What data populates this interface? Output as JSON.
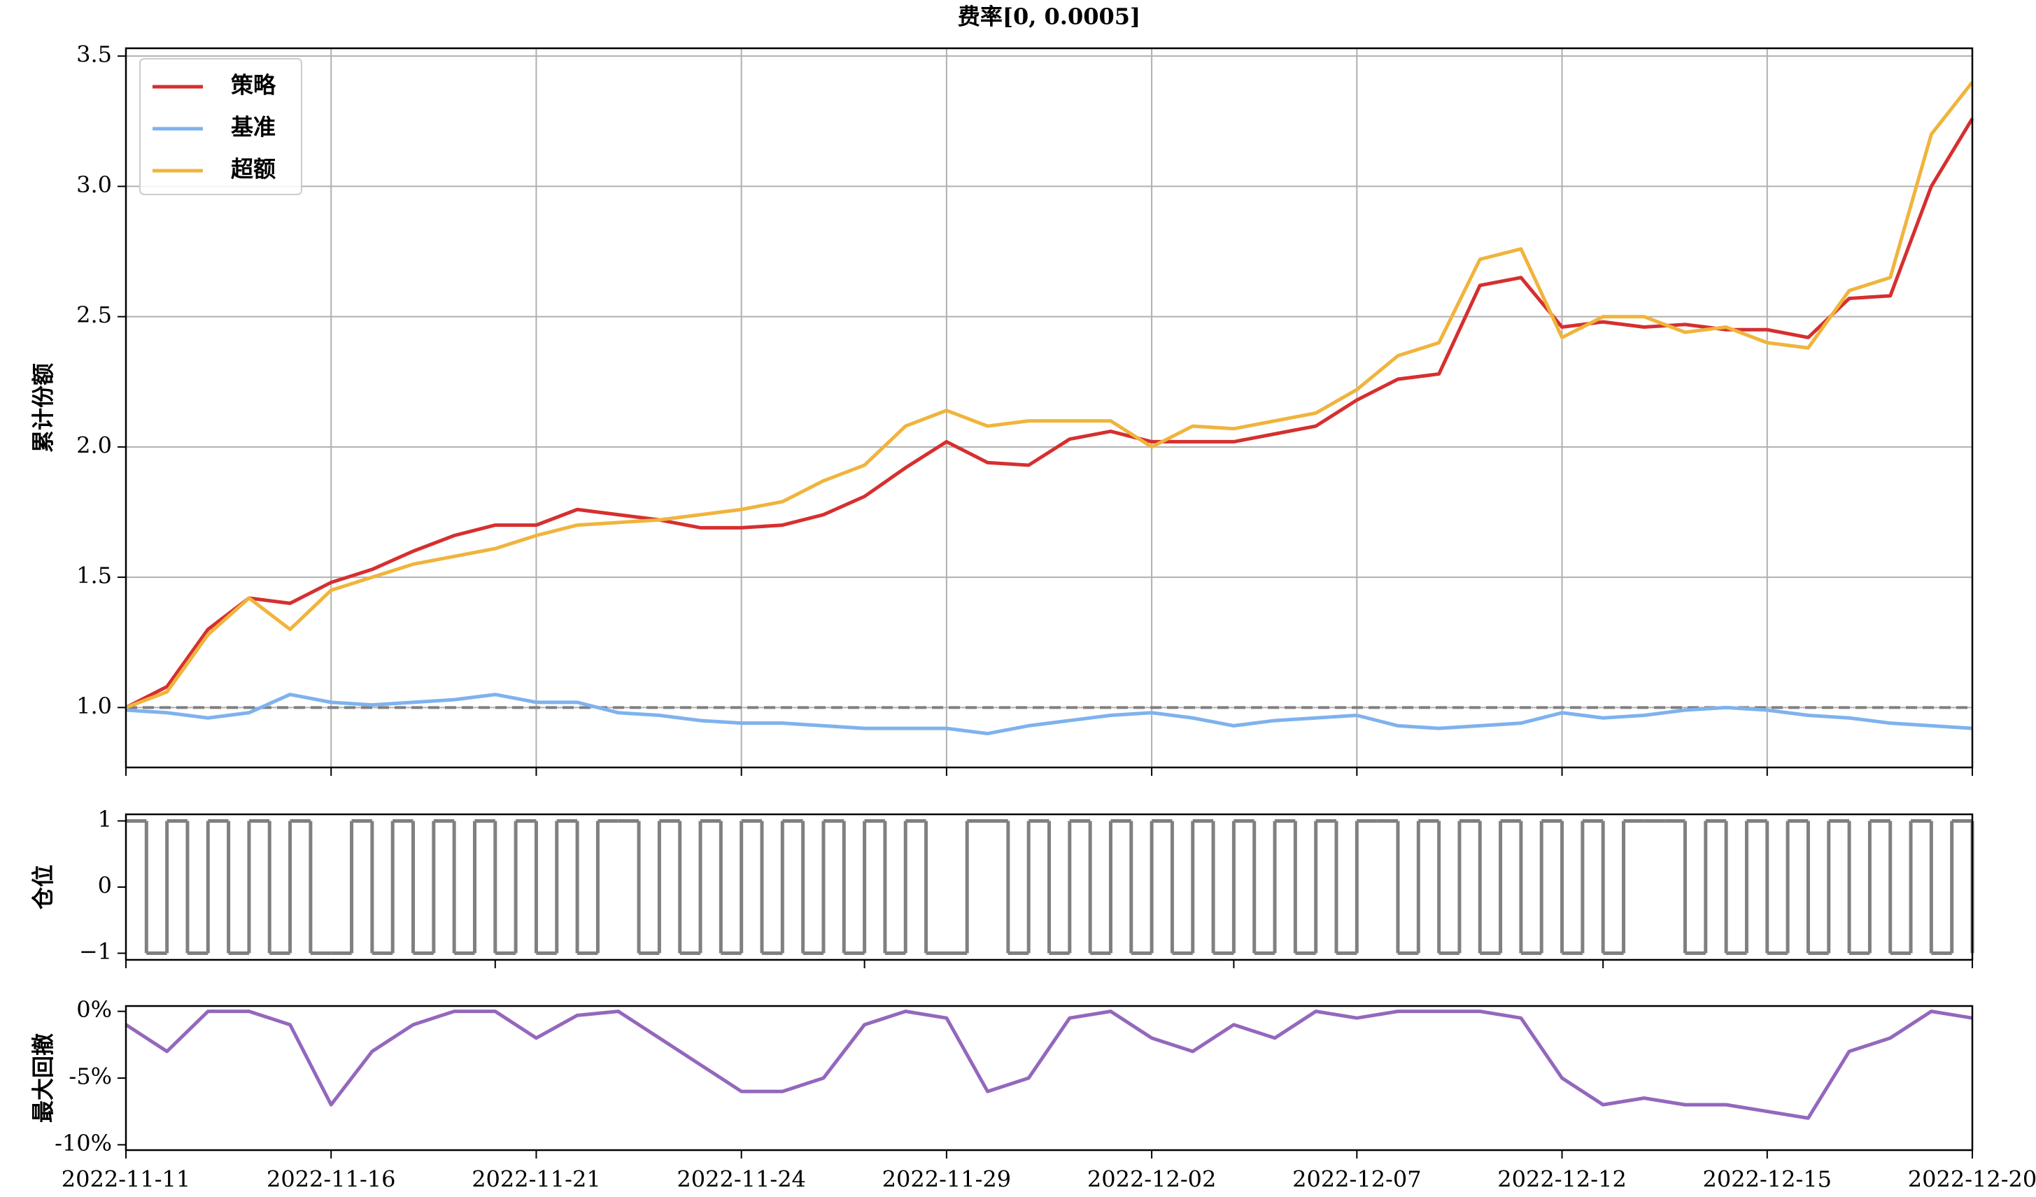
{
  "chart_data": [
    {
      "type": "line",
      "title": "费率[0, 0.0005]",
      "ylabel": "累计份额",
      "grid": true,
      "legend": "upper left",
      "reference_line": 1,
      "x": [
        0,
        2,
        4,
        6,
        8,
        10,
        12,
        14,
        16,
        18,
        20,
        22,
        24,
        26,
        28,
        30,
        32,
        34,
        36,
        38,
        40,
        42,
        44,
        46,
        48,
        50,
        52,
        54,
        56,
        58,
        60,
        62,
        64,
        66,
        68,
        70,
        72,
        74,
        76,
        78,
        80,
        82,
        84,
        86,
        88,
        90
      ],
      "xlim": [
        0,
        90
      ],
      "xticks": [
        0,
        10,
        20,
        30,
        40,
        50,
        60,
        70,
        80,
        90
      ],
      "ylim": [
        0.77,
        3.53
      ],
      "yticks": [
        {
          "value": 1,
          "label": "1.0"
        },
        1.5,
        {
          "value": 2,
          "label": "2.0"
        },
        2.5,
        {
          "value": 3,
          "label": "3.0"
        },
        3.5
      ],
      "series": [
        {
          "name": "策略",
          "color": "#d62f2f",
          "values": [
            1.0,
            1.08,
            1.3,
            1.42,
            1.4,
            1.48,
            1.53,
            1.6,
            1.66,
            1.7,
            1.7,
            1.76,
            1.74,
            1.72,
            1.69,
            1.69,
            1.7,
            1.74,
            1.81,
            1.92,
            2.02,
            1.94,
            1.93,
            2.03,
            2.06,
            2.02,
            2.02,
            2.02,
            2.05,
            2.08,
            2.18,
            2.26,
            2.28,
            2.62,
            2.65,
            2.46,
            2.48,
            2.46,
            2.47,
            2.45,
            2.45,
            2.42,
            2.57,
            2.58,
            3.0,
            3.26
          ]
        },
        {
          "name": "基准",
          "color": "#7eb2ee",
          "values": [
            0.99,
            0.98,
            0.96,
            0.98,
            1.05,
            1.02,
            1.01,
            1.02,
            1.03,
            1.05,
            1.02,
            1.02,
            0.98,
            0.97,
            0.95,
            0.94,
            0.94,
            0.93,
            0.92,
            0.92,
            0.92,
            0.9,
            0.93,
            0.95,
            0.97,
            0.98,
            0.96,
            0.93,
            0.95,
            0.96,
            0.97,
            0.93,
            0.92,
            0.93,
            0.94,
            0.98,
            0.96,
            0.97,
            0.99,
            1.0,
            0.99,
            0.97,
            0.96,
            0.94,
            0.93,
            0.92
          ]
        },
        {
          "name": "超额",
          "color": "#f0b43c",
          "values": [
            1.0,
            1.06,
            1.28,
            1.42,
            1.3,
            1.45,
            1.5,
            1.55,
            1.58,
            1.61,
            1.66,
            1.7,
            1.71,
            1.72,
            1.74,
            1.76,
            1.79,
            1.87,
            1.93,
            2.08,
            2.14,
            2.08,
            2.1,
            2.1,
            2.1,
            2.0,
            2.08,
            2.07,
            2.1,
            2.13,
            2.22,
            2.35,
            2.4,
            2.72,
            2.76,
            2.42,
            2.5,
            2.5,
            2.44,
            2.46,
            2.4,
            2.38,
            2.6,
            2.65,
            3.2,
            3.4
          ]
        }
      ]
    },
    {
      "type": "step",
      "ylabel": "仓位",
      "x": [
        0,
        1,
        2,
        3,
        4,
        5,
        6,
        7,
        8,
        9,
        10,
        11,
        12,
        13,
        14,
        15,
        16,
        17,
        18,
        19,
        20,
        21,
        22,
        23,
        24,
        25,
        26,
        27,
        28,
        29,
        30,
        31,
        32,
        33,
        34,
        35,
        36,
        37,
        38,
        39,
        40,
        41,
        42,
        43,
        44,
        45,
        46,
        47,
        48,
        49,
        50,
        51,
        52,
        53,
        54,
        55,
        56,
        57,
        58,
        59,
        60,
        61,
        62,
        63,
        64,
        65,
        66,
        67,
        68,
        69,
        70,
        71,
        72,
        73,
        74,
        75,
        76,
        77,
        78,
        79,
        80,
        81,
        82,
        83,
        84,
        85,
        86,
        87,
        88,
        89,
        90
      ],
      "xlim": [
        0,
        90
      ],
      "xticks": [
        0,
        18,
        36,
        54,
        72,
        90
      ],
      "ylim": [
        -1.1,
        1.1
      ],
      "yticks": [
        {
          "value": -1,
          "label": "−1"
        },
        0,
        1
      ],
      "series": [
        {
          "color": "#808080",
          "values": [
            1,
            -1,
            1,
            -1,
            1,
            -1,
            1,
            -1,
            1,
            -1,
            -1,
            1,
            -1,
            1,
            -1,
            1,
            -1,
            1,
            -1,
            1,
            -1,
            1,
            -1,
            1,
            1,
            -1,
            1,
            -1,
            1,
            -1,
            1,
            -1,
            1,
            -1,
            1,
            -1,
            1,
            -1,
            1,
            -1,
            -1,
            1,
            1,
            -1,
            1,
            -1,
            1,
            -1,
            1,
            -1,
            1,
            -1,
            1,
            -1,
            1,
            -1,
            1,
            -1,
            1,
            -1,
            1,
            1,
            -1,
            1,
            -1,
            1,
            -1,
            1,
            -1,
            1,
            -1,
            1,
            -1,
            1,
            1,
            1,
            -1,
            1,
            -1,
            1,
            -1,
            1,
            -1,
            1,
            -1,
            1,
            -1,
            1,
            -1,
            1,
            -1
          ]
        }
      ]
    },
    {
      "type": "line",
      "ylabel": "最大回撤",
      "x": [
        0,
        2,
        4,
        6,
        8,
        10,
        12,
        14,
        16,
        18,
        20,
        22,
        24,
        26,
        28,
        30,
        32,
        34,
        36,
        38,
        40,
        42,
        44,
        46,
        48,
        50,
        52,
        54,
        56,
        58,
        60,
        62,
        64,
        66,
        68,
        70,
        72,
        74,
        76,
        78,
        80,
        82,
        84,
        86,
        88,
        90
      ],
      "xlim": [
        0,
        90
      ],
      "xticks": [
        {
          "value": 0,
          "label": "2022-11-11"
        },
        {
          "value": 10,
          "label": "2022-11-16"
        },
        {
          "value": 20,
          "label": "2022-11-21"
        },
        {
          "value": 30,
          "label": "2022-11-24"
        },
        {
          "value": 40,
          "label": "2022-11-29"
        },
        {
          "value": 50,
          "label": "2022-12-02"
        },
        {
          "value": 60,
          "label": "2022-12-07"
        },
        {
          "value": 70,
          "label": "2022-12-12"
        },
        {
          "value": 80,
          "label": "2022-12-15"
        },
        {
          "value": 90,
          "label": "2022-12-20"
        }
      ],
      "ylim": [
        -10.4,
        0.4
      ],
      "yticks": [
        {
          "value": 0,
          "label": "0%"
        },
        {
          "value": -5,
          "label": "-5%"
        },
        {
          "value": -10,
          "label": "-10%"
        }
      ],
      "series": [
        {
          "color": "#9467bd",
          "values": [
            -1,
            -3,
            0,
            0,
            -1,
            -7,
            -3,
            -1,
            0,
            0,
            -2,
            -0.3,
            0,
            -2,
            -4,
            -6,
            -6,
            -5,
            -1,
            0,
            -0.5,
            -6,
            -5,
            -0.5,
            0,
            -2,
            -3,
            -1,
            -2,
            0,
            -0.5,
            0,
            0,
            0,
            -0.5,
            -5,
            -7,
            -6.5,
            -7,
            -7,
            -7.5,
            -8,
            -3,
            -2,
            0,
            -0.5
          ]
        }
      ]
    }
  ]
}
